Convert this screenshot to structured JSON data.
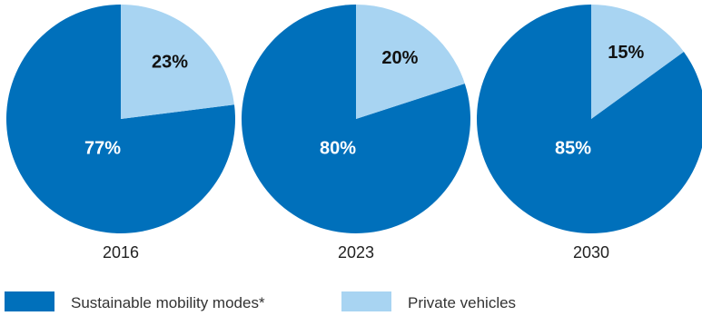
{
  "colors": {
    "sustainable": "#0070bb",
    "private": "#a8d4f2"
  },
  "legend": [
    {
      "key": "sustainable",
      "label": "Sustainable mobility modes*"
    },
    {
      "key": "private",
      "label": "Private vehicles"
    }
  ],
  "chart_data": [
    {
      "type": "pie",
      "category": "2016",
      "slices": [
        {
          "key": "sustainable",
          "label": "77%",
          "value": 77
        },
        {
          "key": "private",
          "label": "23%",
          "value": 23
        }
      ]
    },
    {
      "type": "pie",
      "category": "2023",
      "slices": [
        {
          "key": "sustainable",
          "label": "80%",
          "value": 80
        },
        {
          "key": "private",
          "label": "20%",
          "value": 20
        }
      ]
    },
    {
      "type": "pie",
      "category": "2030",
      "slices": [
        {
          "key": "sustainable",
          "label": "85%",
          "value": 85
        },
        {
          "key": "private",
          "label": "15%",
          "value": 15
        }
      ]
    }
  ]
}
